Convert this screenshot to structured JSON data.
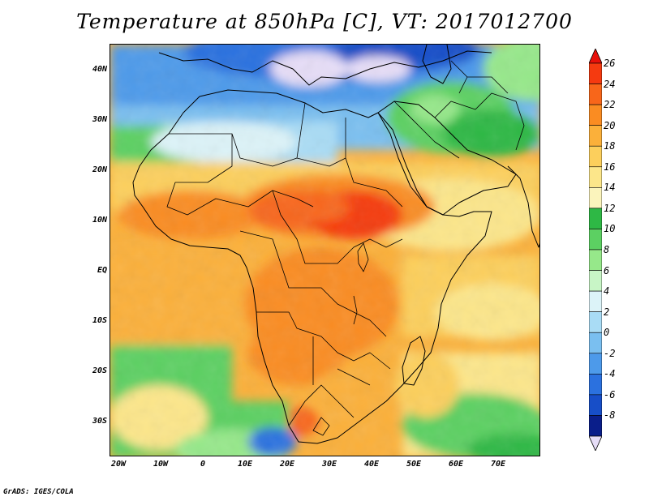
{
  "title": "Temperature at 850hPa [C], VT: 2017012700",
  "credit": "GrADS: IGES/COLA",
  "map": {
    "lon_range": [
      -22,
      80
    ],
    "lat_range": [
      -37,
      45
    ],
    "lat_labels": [
      "40N",
      "30N",
      "20N",
      "10N",
      "EQ",
      "10S",
      "20S",
      "30S"
    ],
    "lon_labels": [
      "20W",
      "10W",
      "0",
      "10E",
      "20E",
      "30E",
      "40E",
      "50E",
      "60E",
      "70E"
    ]
  },
  "colorbar": {
    "labels": [
      "26",
      "24",
      "22",
      "20",
      "18",
      "16",
      "14",
      "12",
      "10",
      "8",
      "6",
      "4",
      "2",
      "0",
      "-2",
      "-4",
      "-6",
      "-8"
    ],
    "colors": [
      "#e8100a",
      "#f53a10",
      "#f8661a",
      "#fa8c22",
      "#fbb03a",
      "#fccf5c",
      "#fce68a",
      "#fbf4bc",
      "#2eb845",
      "#5cd062",
      "#96e88a",
      "#c8f5c6",
      "#dcf3f8",
      "#a9dcf5",
      "#7abff0",
      "#4d9aea",
      "#2b71df",
      "#174ec8",
      "#0a1e8a",
      "#e6ddf7"
    ]
  }
}
